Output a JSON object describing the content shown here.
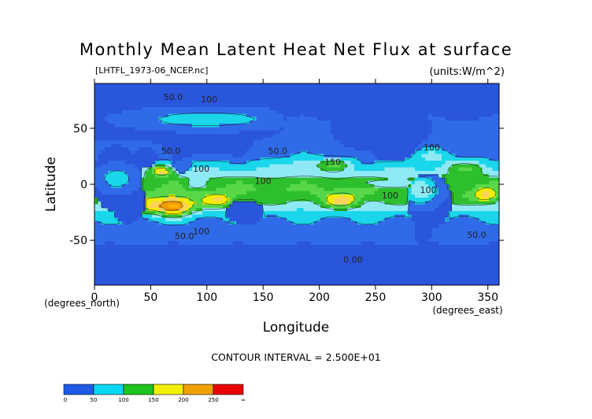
{
  "chart_data": {
    "type": "heatmap",
    "title": "Monthly Mean Latent Heat Net Flux at surface",
    "subtitle_left": "[LHTFL_1973-06_NCEP.nc]",
    "subtitle_right": "(units:W/m^2)",
    "xlabel": "Longitude",
    "ylabel": "Latitude",
    "x_units": "(degrees_east)",
    "y_units": "(degrees_north)",
    "xlim": [
      0,
      360
    ],
    "ylim": [
      -90,
      90
    ],
    "x_ticks": [
      "0",
      "50",
      "100",
      "150",
      "200",
      "250",
      "300",
      "350"
    ],
    "x_tick_values": [
      0,
      50,
      100,
      150,
      200,
      250,
      300,
      350
    ],
    "y_ticks": [
      "50",
      "0",
      "-50"
    ],
    "y_tick_values": [
      50,
      0,
      -50
    ],
    "contour_interval_text": "CONTOUR INTERVAL = 2.500E+01",
    "contour_labels": [
      {
        "text": "50.0",
        "lon": 70,
        "lat": 78
      },
      {
        "text": "100",
        "lon": 102,
        "lat": 76
      },
      {
        "text": "50.0",
        "lon": 163,
        "lat": 30
      },
      {
        "text": "50.0",
        "lon": 68,
        "lat": 30
      },
      {
        "text": "100",
        "lon": 95,
        "lat": 14
      },
      {
        "text": "150",
        "lon": 212,
        "lat": 20
      },
      {
        "text": "100",
        "lon": 300,
        "lat": 33
      },
      {
        "text": "100",
        "lon": 297,
        "lat": -5
      },
      {
        "text": "100",
        "lon": 263,
        "lat": -10
      },
      {
        "text": "100",
        "lon": 150,
        "lat": 3
      },
      {
        "text": "50.0",
        "lon": 80,
        "lat": -46
      },
      {
        "text": "100",
        "lon": 95,
        "lat": -42
      },
      {
        "text": "0.00",
        "lon": 230,
        "lat": -67
      },
      {
        "text": "50.0",
        "lon": 340,
        "lat": -45
      }
    ],
    "colorbar": {
      "levels": [
        "0",
        "50",
        "100",
        "150",
        "200",
        "250",
        "∞"
      ],
      "colors": [
        "#1e5ae6",
        "#00d8f5",
        "#1ec31e",
        "#f2f000",
        "#f0a000",
        "#eb0000"
      ]
    },
    "field_model": {
      "description_free": true,
      "color_bins": [
        25,
        50,
        75,
        100,
        125,
        150,
        175,
        200,
        225,
        250
      ],
      "bin_colors": [
        "#2a55dd",
        "#2f6be8",
        "#19d6ea",
        "#8fe9f4",
        "#2dbf2d",
        "#58d848",
        "#f0ee00",
        "#ffd35a",
        "#f29a00",
        "#ffb000",
        "#e80000"
      ]
    }
  }
}
